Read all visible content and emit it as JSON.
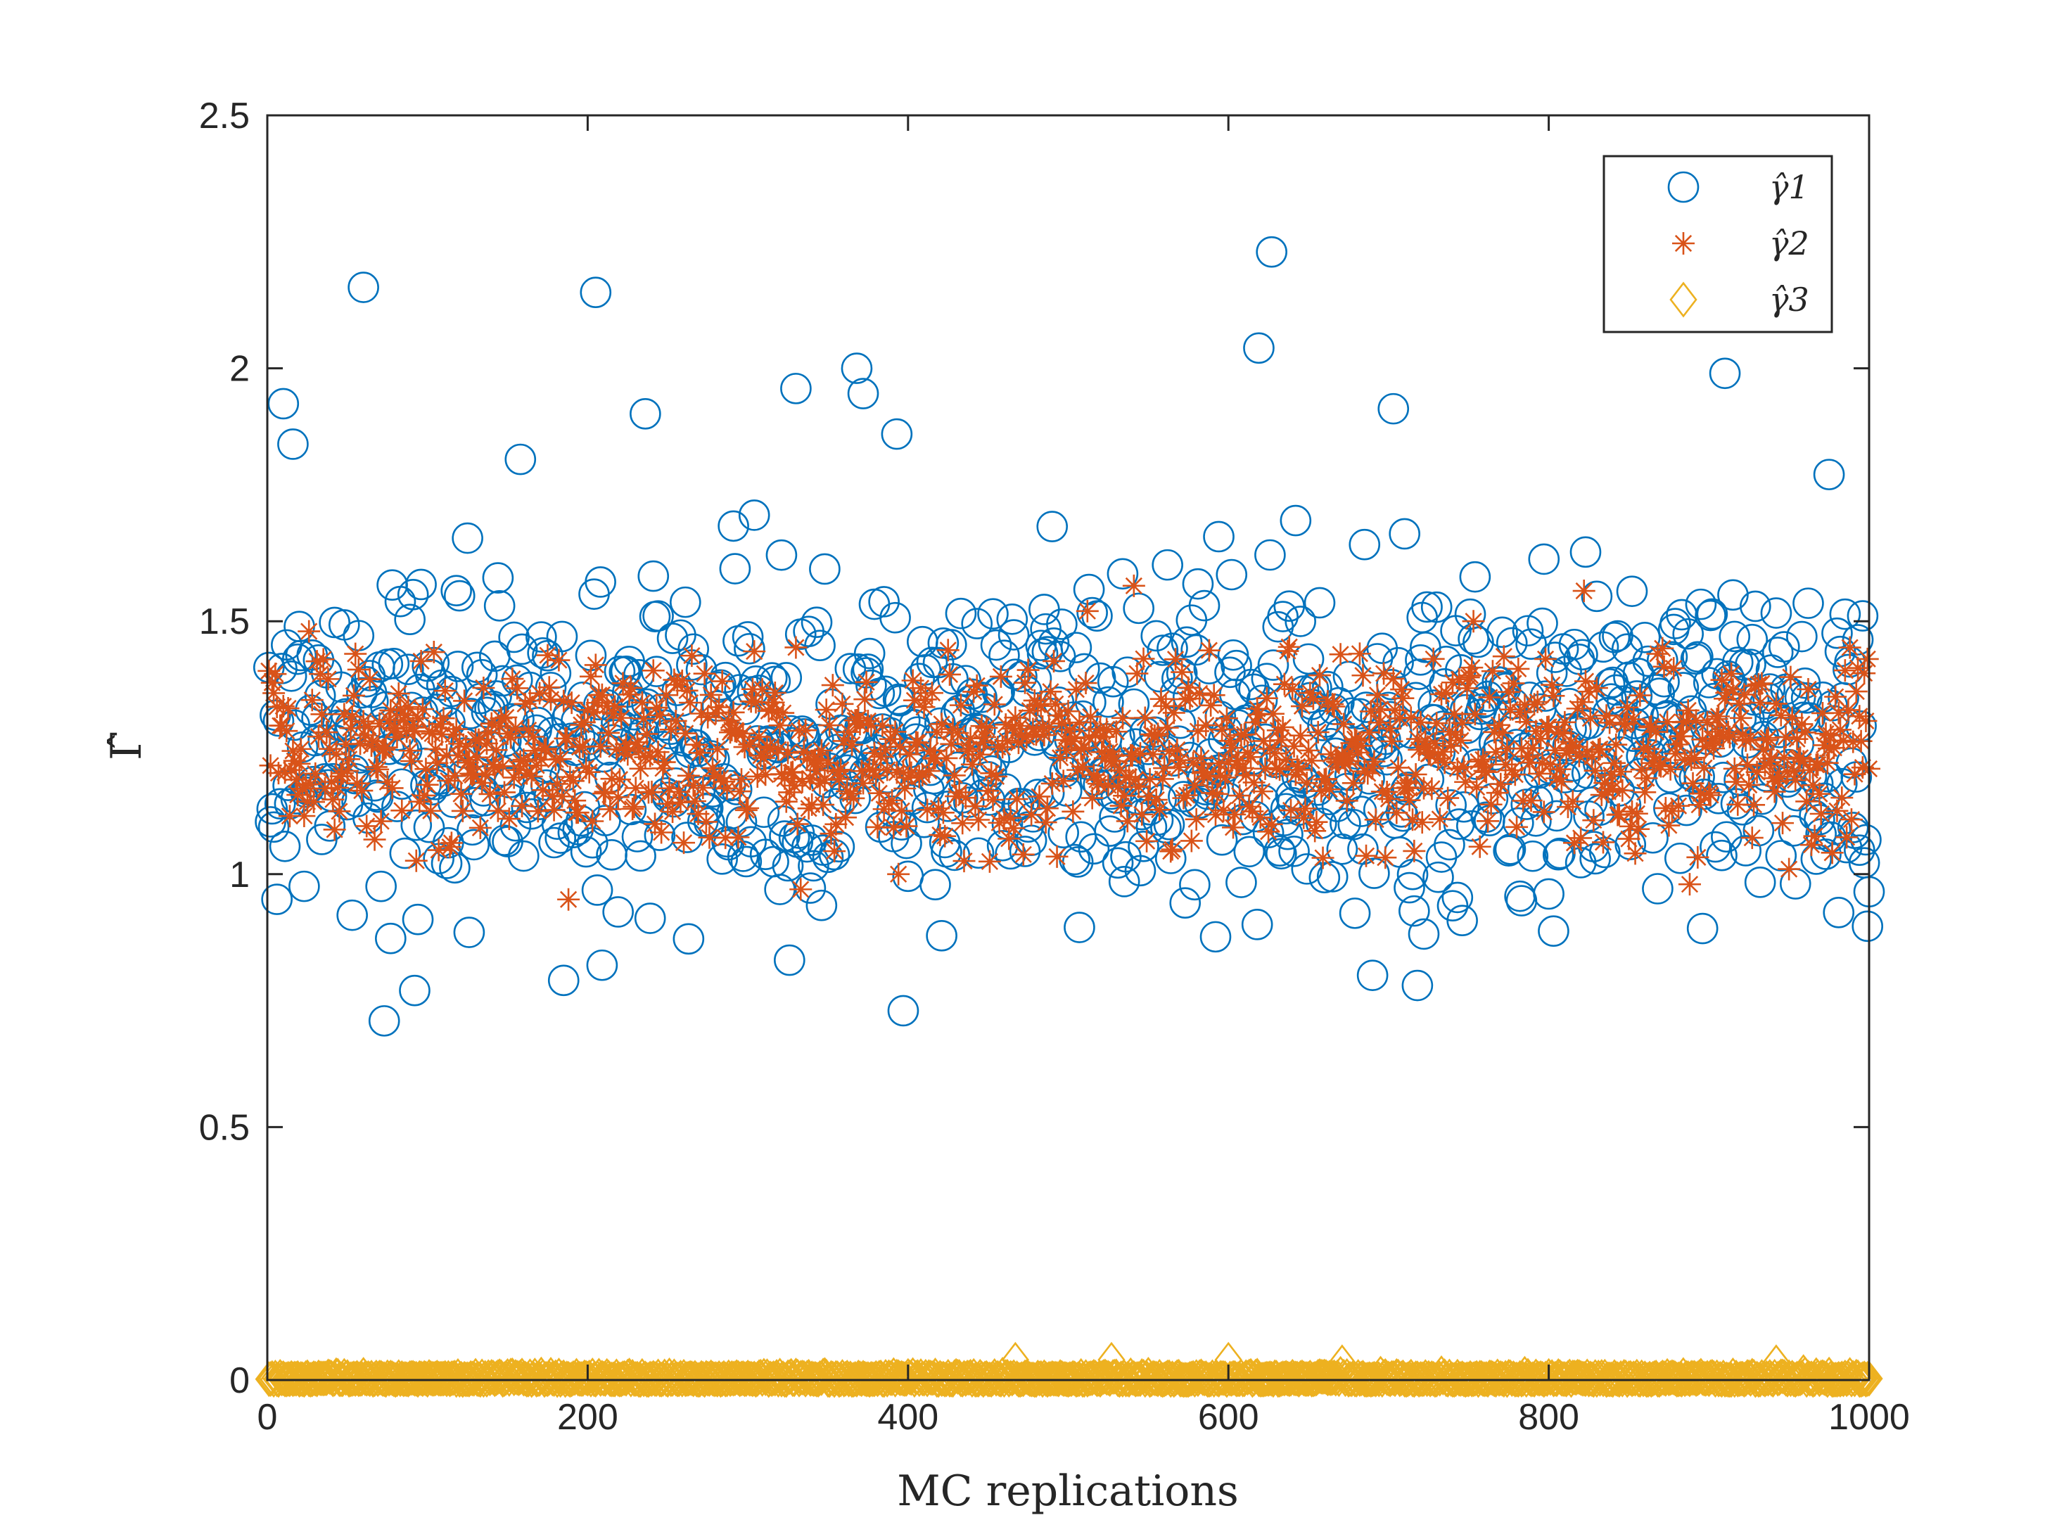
{
  "chart_data": {
    "type": "scatter",
    "title": "",
    "xlabel": "MC replications",
    "ylabel": "Γ̂",
    "xlim": [
      0,
      1000
    ],
    "ylim": [
      0,
      2.5
    ],
    "xticks": [
      0,
      200,
      400,
      600,
      800,
      1000
    ],
    "yticks": [
      0,
      0.5,
      1,
      1.5,
      2,
      2.5
    ],
    "xtick_labels": [
      "0",
      "200",
      "400",
      "600",
      "800",
      "1000"
    ],
    "ytick_labels": [
      "0",
      "0.5",
      "1",
      "1.5",
      "2",
      "2.5"
    ],
    "grid": false,
    "legend_position": "top-right",
    "n_points": 1000,
    "series": [
      {
        "name": "γ̂1",
        "marker": "circle",
        "color": "#0072BD",
        "center": 1.26,
        "spread": 0.16,
        "notable_points": [
          {
            "x": 60,
            "y": 2.16
          },
          {
            "x": 205,
            "y": 2.15
          },
          {
            "x": 627,
            "y": 2.23
          },
          {
            "x": 619,
            "y": 2.04
          },
          {
            "x": 368,
            "y": 2.0
          },
          {
            "x": 910,
            "y": 1.99
          },
          {
            "x": 372,
            "y": 1.95
          },
          {
            "x": 330,
            "y": 1.96
          },
          {
            "x": 10,
            "y": 1.93
          },
          {
            "x": 703,
            "y": 1.92
          },
          {
            "x": 236,
            "y": 1.91
          },
          {
            "x": 16,
            "y": 1.85
          },
          {
            "x": 393,
            "y": 1.87
          },
          {
            "x": 158,
            "y": 1.82
          },
          {
            "x": 975,
            "y": 1.79
          },
          {
            "x": 73,
            "y": 0.71
          },
          {
            "x": 397,
            "y": 0.73
          },
          {
            "x": 92,
            "y": 0.77
          },
          {
            "x": 185,
            "y": 0.79
          },
          {
            "x": 209,
            "y": 0.82
          },
          {
            "x": 718,
            "y": 0.78
          },
          {
            "x": 690,
            "y": 0.8
          },
          {
            "x": 326,
            "y": 0.83
          }
        ]
      },
      {
        "name": "γ̂2",
        "marker": "asterisk",
        "color": "#D95319",
        "center": 1.24,
        "spread": 0.09,
        "notable_points": [
          {
            "x": 541,
            "y": 1.57
          },
          {
            "x": 822,
            "y": 1.56
          },
          {
            "x": 512,
            "y": 1.52
          },
          {
            "x": 26,
            "y": 1.48
          },
          {
            "x": 753,
            "y": 1.5
          },
          {
            "x": 188,
            "y": 0.95
          },
          {
            "x": 333,
            "y": 0.97
          },
          {
            "x": 888,
            "y": 0.98
          },
          {
            "x": 950,
            "y": 1.01
          },
          {
            "x": 394,
            "y": 1.0
          }
        ]
      },
      {
        "name": "γ̂3",
        "marker": "diamond",
        "color": "#EDB120",
        "center": 0.004,
        "spread": 0.004,
        "notable_points": [
          {
            "x": 527,
            "y": 0.04
          },
          {
            "x": 600,
            "y": 0.04
          },
          {
            "x": 467,
            "y": 0.04
          },
          {
            "x": 671,
            "y": 0.035
          },
          {
            "x": 942,
            "y": 0.035
          }
        ]
      }
    ]
  }
}
